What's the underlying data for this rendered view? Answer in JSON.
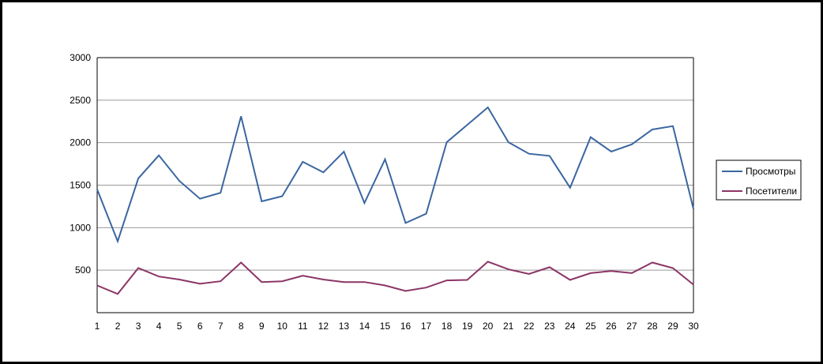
{
  "chart_data": {
    "type": "line",
    "title": "",
    "xlabel": "",
    "ylabel": "",
    "ylim": [
      0,
      3000
    ],
    "yticks": [
      500,
      1000,
      1500,
      2000,
      2500,
      3000
    ],
    "categories": [
      "1",
      "2",
      "3",
      "4",
      "5",
      "6",
      "7",
      "8",
      "9",
      "10",
      "11",
      "12",
      "13",
      "14",
      "15",
      "16",
      "17",
      "18",
      "19",
      "20",
      "21",
      "22",
      "23",
      "24",
      "25",
      "26",
      "27",
      "28",
      "29",
      "30"
    ],
    "grid": true,
    "legend_position": "right",
    "series": [
      {
        "name": "Просмотры",
        "color": "#3a66a0",
        "values": [
          1450,
          840,
          1580,
          1850,
          1550,
          1340,
          1410,
          2310,
          1310,
          1370,
          1775,
          1650,
          1895,
          1290,
          1805,
          1055,
          1165,
          2005,
          2210,
          2415,
          2005,
          1870,
          1845,
          1470,
          2065,
          1895,
          1980,
          2155,
          2195,
          1220
        ]
      },
      {
        "name": "Посетители",
        "color": "#8b3566",
        "values": [
          320,
          220,
          525,
          425,
          390,
          340,
          370,
          590,
          360,
          370,
          435,
          390,
          360,
          360,
          320,
          255,
          295,
          380,
          385,
          600,
          510,
          455,
          535,
          385,
          465,
          490,
          465,
          590,
          525,
          330
        ]
      }
    ]
  }
}
